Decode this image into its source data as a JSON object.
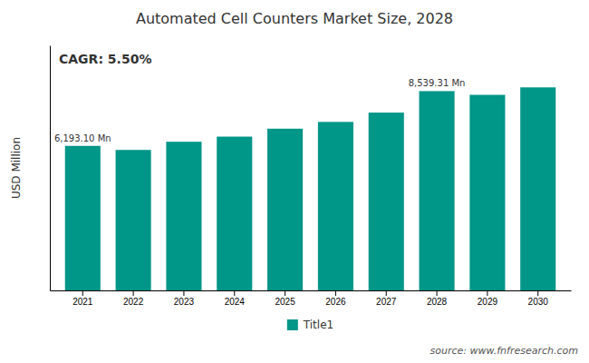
{
  "chart_data": {
    "type": "bar",
    "title": "Automated Cell Counters Market Size, 2028",
    "ylabel": "USD Million",
    "categories": [
      "2021",
      "2022",
      "2023",
      "2024",
      "2025",
      "2026",
      "2027",
      "2028",
      "2029",
      "2030"
    ],
    "series": [
      {
        "name": "Title1",
        "color": "#009688",
        "values": [
          6193.1,
          6020.0,
          6370.0,
          6590.0,
          6930.0,
          7220.0,
          7620.0,
          8539.31,
          8380.0,
          8700.0
        ],
        "value_labels": [
          "6,193.10 Mn",
          null,
          null,
          null,
          null,
          null,
          null,
          "8,539.31 Mn",
          null,
          null
        ]
      }
    ],
    "ylim": [
      0,
      10500
    ],
    "tick_labels": "x",
    "grid": false,
    "legend": "bottom",
    "annotation": "CAGR: 5.50%",
    "source": "source: www.fnfresearch.com"
  }
}
